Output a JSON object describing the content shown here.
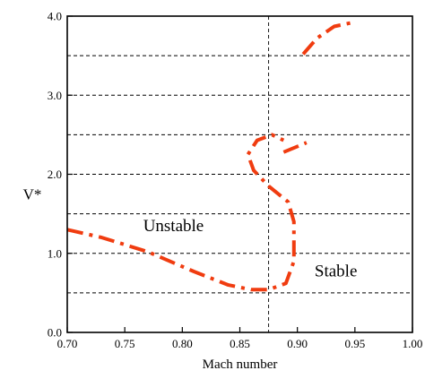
{
  "chart_data": {
    "type": "line",
    "xlabel": "Mach number",
    "ylabel": "V*",
    "xlim": [
      0.7,
      1.0
    ],
    "ylim": [
      0.0,
      4.0
    ],
    "x_ticks": [
      "0.70",
      "0.75",
      "0.80",
      "0.85",
      "0.90",
      "0.95",
      "1.00"
    ],
    "y_ticks": [
      "0.0",
      "1.0",
      "2.0",
      "3.0",
      "4.0"
    ],
    "grid": "horizontal dashed lines every 0.5",
    "reference_x": 0.875,
    "annotations": [
      "Unstable",
      "Stable"
    ],
    "series": [
      {
        "color": "#f03c10",
        "style": "dash-dot",
        "segments": [
          [
            [
              0.7,
              1.3
            ],
            [
              0.73,
              1.2
            ],
            [
              0.77,
              1.02
            ],
            [
              0.81,
              0.77
            ],
            [
              0.84,
              0.6
            ],
            [
              0.86,
              0.54
            ],
            [
              0.875,
              0.54
            ],
            [
              0.89,
              0.62
            ],
            [
              0.897,
              0.9
            ],
            [
              0.897,
              1.4
            ],
            [
              0.892,
              1.65
            ],
            [
              0.875,
              1.85
            ],
            [
              0.862,
              2.05
            ],
            [
              0.857,
              2.25
            ],
            [
              0.865,
              2.43
            ],
            [
              0.878,
              2.5
            ],
            [
              0.888,
              2.43
            ]
          ],
          [
            [
              0.888,
              2.28
            ],
            [
              0.908,
              2.4
            ]
          ],
          [
            [
              0.905,
              3.52
            ],
            [
              0.917,
              3.72
            ],
            [
              0.932,
              3.87
            ],
            [
              0.948,
              3.92
            ]
          ]
        ]
      }
    ]
  }
}
